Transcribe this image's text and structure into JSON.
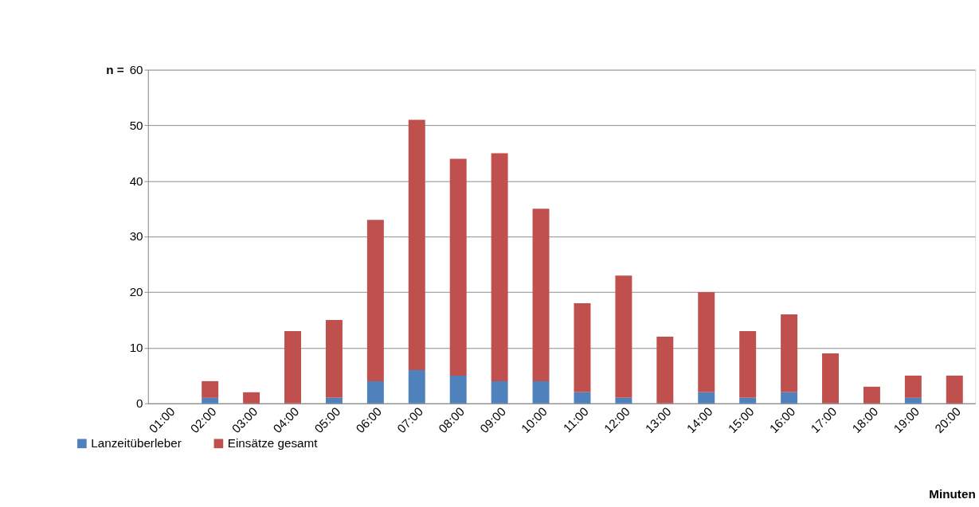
{
  "chart_data": {
    "type": "bar",
    "stacked": true,
    "xlabel": "Minuten",
    "ylabel": "n =",
    "categories": [
      "01:00",
      "02:00",
      "03:00",
      "04:00",
      "05:00",
      "06:00",
      "07:00",
      "08:00",
      "09:00",
      "10:00",
      "11:00",
      "12:00",
      "13:00",
      "14:00",
      "15:00",
      "16:00",
      "17:00",
      "18:00",
      "19:00",
      "20:00"
    ],
    "series": [
      {
        "name": "Lanzeitüberleber",
        "color": "#4f81bd",
        "values": [
          0,
          1,
          0,
          0,
          1,
          4,
          6,
          5,
          4,
          4,
          2,
          1,
          0,
          2,
          1,
          2,
          0,
          0,
          1,
          0
        ]
      },
      {
        "name": "Einsätze gesamt",
        "color": "#c0504d",
        "values": [
          0,
          3,
          2,
          13,
          14,
          29,
          45,
          39,
          41,
          31,
          16,
          22,
          12,
          18,
          12,
          14,
          9,
          3,
          4,
          5
        ]
      }
    ],
    "ylim": [
      0,
      60
    ],
    "yticks": [
      0,
      10,
      20,
      30,
      40,
      50,
      60
    ],
    "grid": "y",
    "legend": "bottom left"
  }
}
